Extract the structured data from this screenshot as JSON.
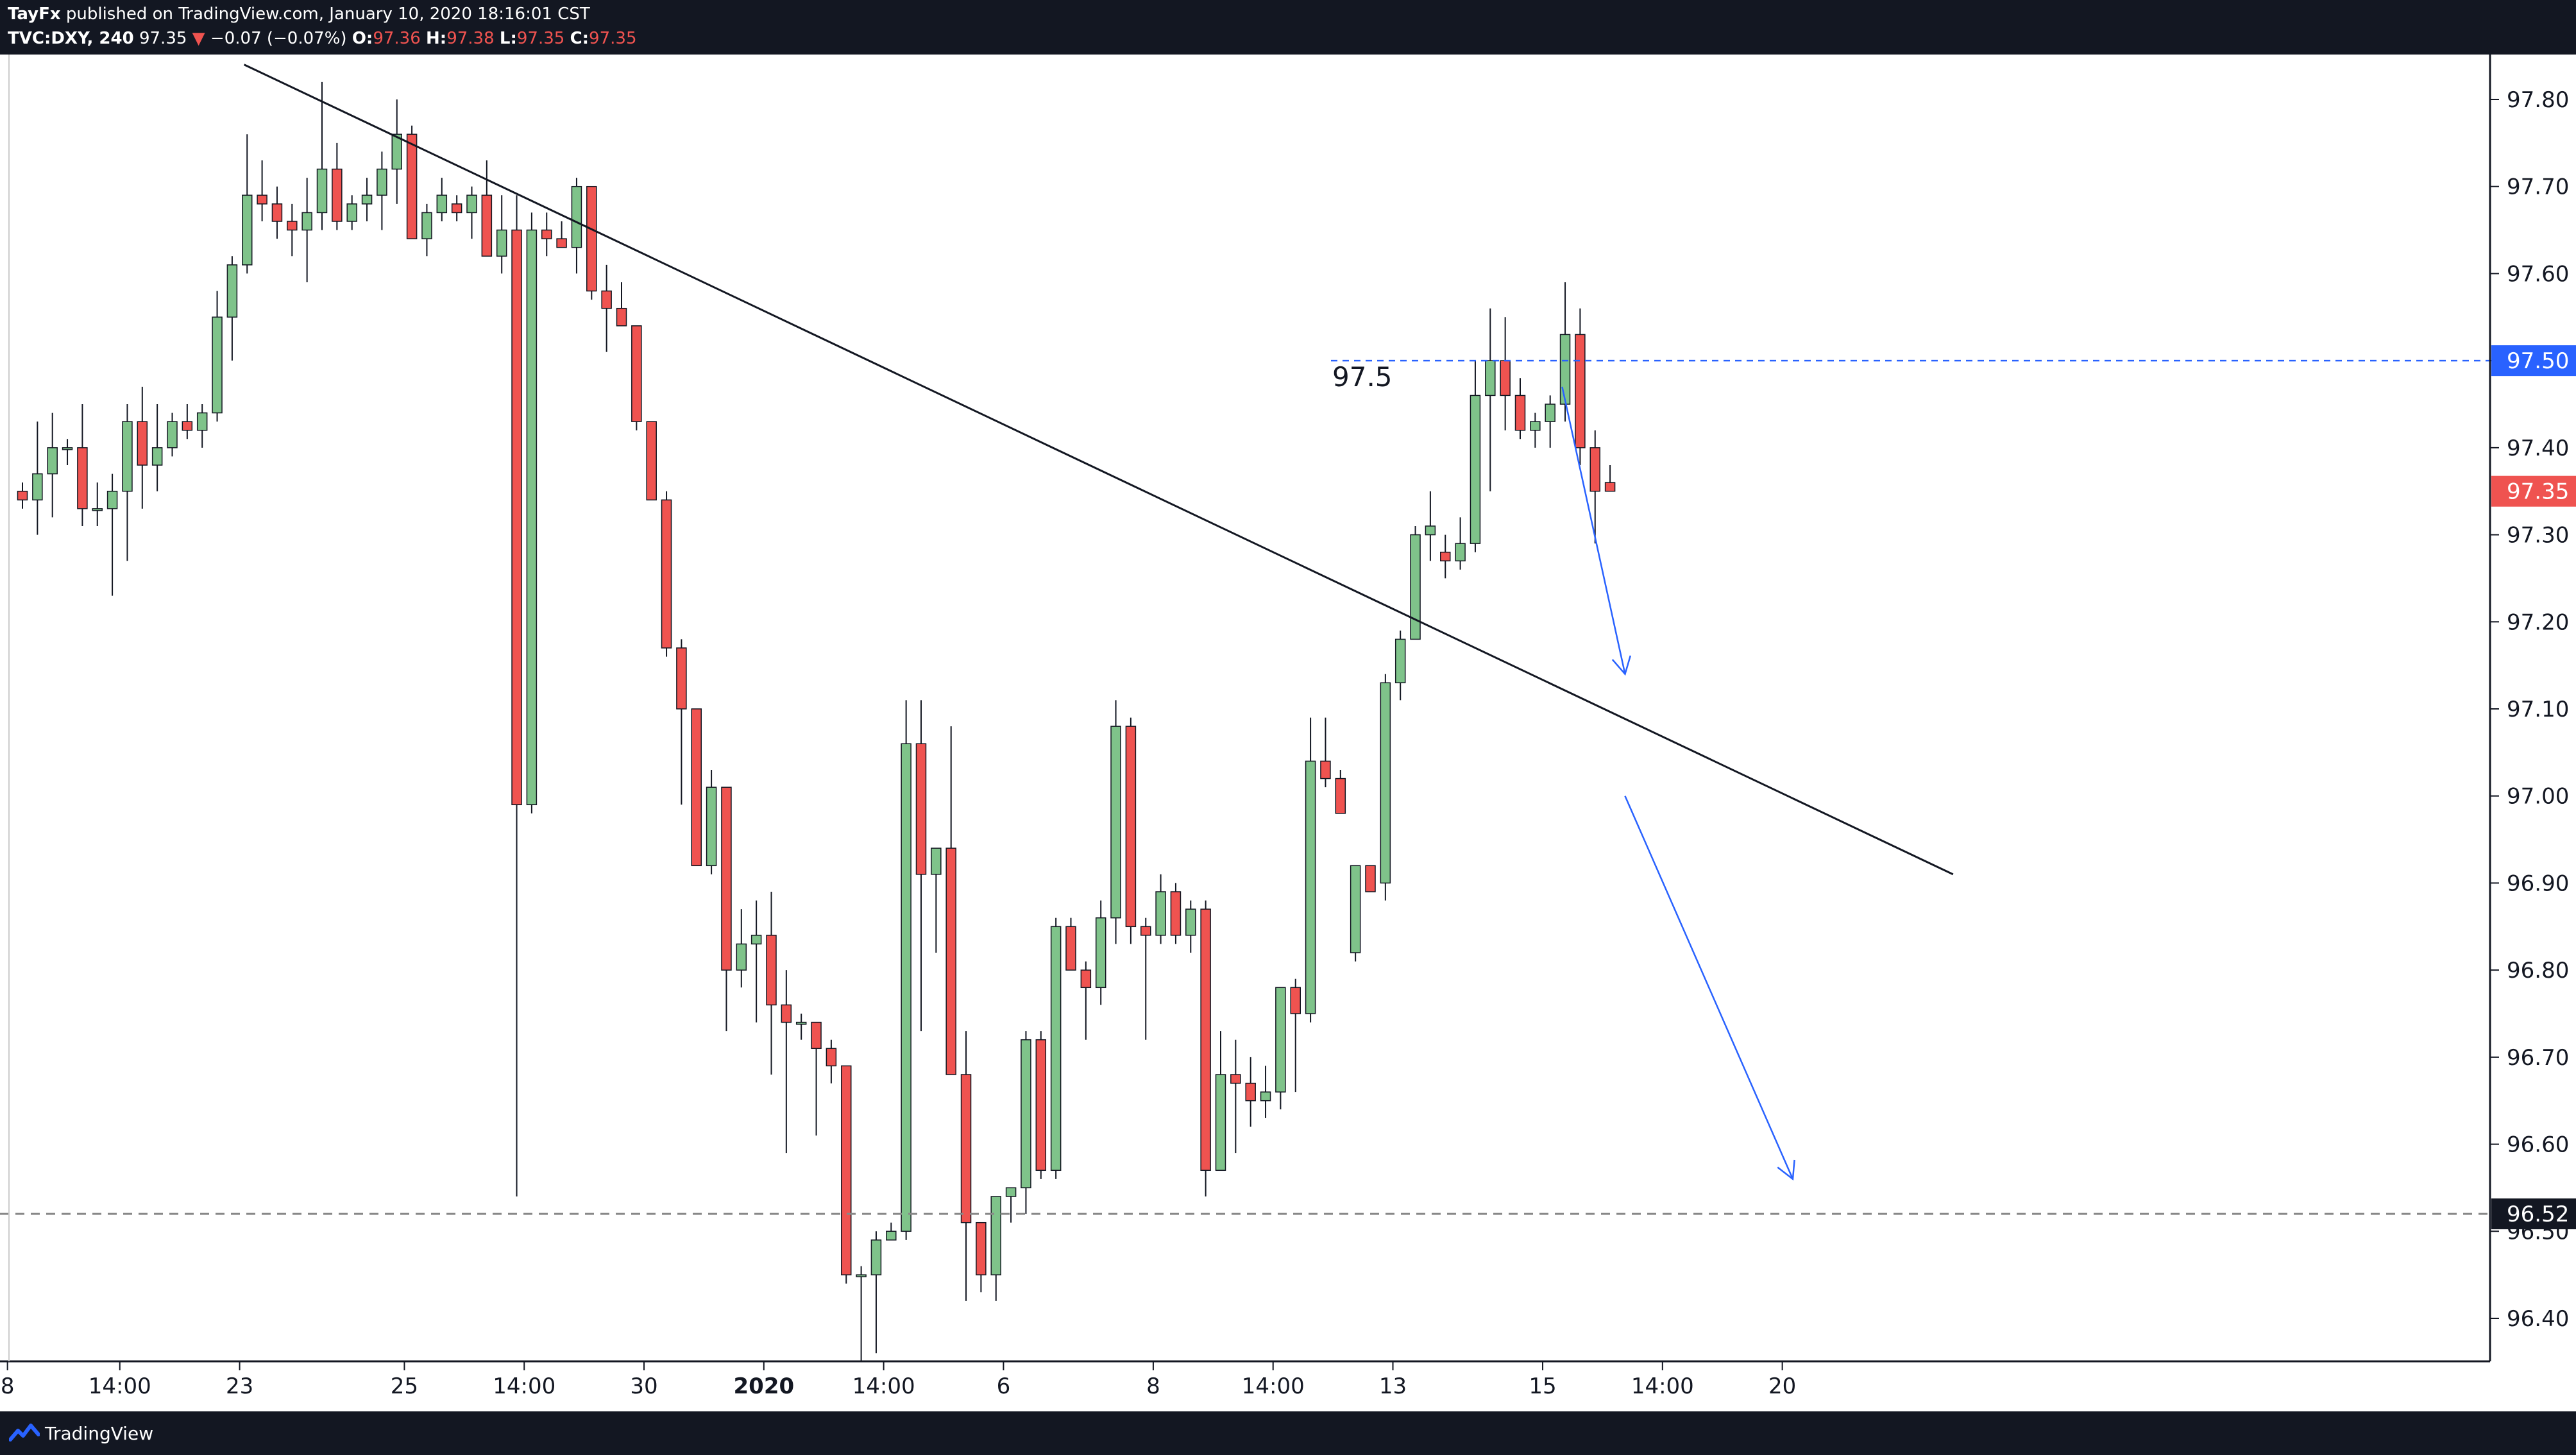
{
  "header": {
    "author": "TayFx",
    "published_text": "published on TradingView.com, January 10, 2020 18:16:01 CST",
    "symbol": "TVC:DXY, 240",
    "last": "97.35",
    "change_arrow": "▼",
    "change": "−0.07 (−0.07%)",
    "o_label": "O:",
    "o_value": "97.36",
    "h_label": "H:",
    "h_value": "97.38",
    "l_label": "L:",
    "l_value": "97.35",
    "c_label": "C:",
    "c_value": "97.35"
  },
  "footer": {
    "brand": "TradingView",
    "logo_icon": "tradingview-logo-icon"
  },
  "colors": {
    "up": "#7fc38a",
    "down": "#ef5350",
    "accent": "#2962ff",
    "frame": "#131722"
  },
  "chart_data": {
    "type": "candlestick",
    "y_ticks": [
      "97.80",
      "97.70",
      "97.60",
      "97.50",
      "97.40",
      "97.30",
      "97.20",
      "97.10",
      "97.00",
      "96.90",
      "96.80",
      "96.70",
      "96.60",
      "96.50",
      "96.40"
    ],
    "x_ticks": [
      {
        "label": "8",
        "at": -1
      },
      {
        "label": "14:00",
        "at": 6.5
      },
      {
        "label": "23",
        "at": 14.5
      },
      {
        "label": "25",
        "at": 25.5
      },
      {
        "label": "14:00",
        "at": 33.5
      },
      {
        "label": "30",
        "at": 41.5
      },
      {
        "label": "2020",
        "at": 49.5
      },
      {
        "label": "14:00",
        "at": 57.5
      },
      {
        "label": "6",
        "at": 65.5
      },
      {
        "label": "8",
        "at": 75.5
      },
      {
        "label": "14:00",
        "at": 83.5
      },
      {
        "label": "13",
        "at": 91.5
      },
      {
        "label": "15",
        "at": 101.5
      },
      {
        "label": "14:00",
        "at": 109.5
      },
      {
        "label": "20",
        "at": 117.5
      }
    ],
    "ylim": [
      96.35,
      97.83
    ],
    "candles": [
      [
        97.35,
        97.36,
        97.33,
        97.34
      ],
      [
        97.34,
        97.43,
        97.3,
        97.37
      ],
      [
        97.37,
        97.44,
        97.32,
        97.4
      ],
      [
        97.4,
        97.41,
        97.38,
        97.4
      ],
      [
        97.4,
        97.45,
        97.31,
        97.33
      ],
      [
        97.33,
        97.36,
        97.31,
        97.33
      ],
      [
        97.33,
        97.37,
        97.23,
        97.35
      ],
      [
        97.35,
        97.45,
        97.27,
        97.43
      ],
      [
        97.43,
        97.47,
        97.33,
        97.38
      ],
      [
        97.38,
        97.45,
        97.35,
        97.4
      ],
      [
        97.4,
        97.44,
        97.39,
        97.43
      ],
      [
        97.43,
        97.45,
        97.41,
        97.42
      ],
      [
        97.42,
        97.45,
        97.4,
        97.44
      ],
      [
        97.44,
        97.58,
        97.43,
        97.55
      ],
      [
        97.55,
        97.62,
        97.5,
        97.61
      ],
      [
        97.61,
        97.76,
        97.6,
        97.69
      ],
      [
        97.69,
        97.73,
        97.66,
        97.68
      ],
      [
        97.68,
        97.7,
        97.64,
        97.66
      ],
      [
        97.66,
        97.68,
        97.62,
        97.65
      ],
      [
        97.65,
        97.71,
        97.59,
        97.67
      ],
      [
        97.67,
        97.82,
        97.65,
        97.72
      ],
      [
        97.72,
        97.75,
        97.65,
        97.66
      ],
      [
        97.66,
        97.69,
        97.65,
        97.68
      ],
      [
        97.68,
        97.71,
        97.66,
        97.69
      ],
      [
        97.69,
        97.74,
        97.65,
        97.72
      ],
      [
        97.72,
        97.8,
        97.68,
        97.76
      ],
      [
        97.76,
        97.77,
        97.64,
        97.64
      ],
      [
        97.64,
        97.68,
        97.62,
        97.67
      ],
      [
        97.67,
        97.71,
        97.66,
        97.69
      ],
      [
        97.68,
        97.69,
        97.66,
        97.67
      ],
      [
        97.67,
        97.7,
        97.64,
        97.69
      ],
      [
        97.69,
        97.73,
        97.62,
        97.62
      ],
      [
        97.62,
        97.69,
        97.6,
        97.65
      ],
      [
        97.65,
        97.69,
        96.54,
        96.99
      ],
      [
        96.99,
        97.67,
        96.98,
        97.65
      ],
      [
        97.65,
        97.67,
        97.62,
        97.64
      ],
      [
        97.64,
        97.66,
        97.63,
        97.63
      ],
      [
        97.63,
        97.71,
        97.6,
        97.7
      ],
      [
        97.7,
        97.7,
        97.57,
        97.58
      ],
      [
        97.58,
        97.61,
        97.51,
        97.56
      ],
      [
        97.56,
        97.59,
        97.54,
        97.54
      ],
      [
        97.54,
        97.54,
        97.42,
        97.43
      ],
      [
        97.43,
        97.43,
        97.34,
        97.34
      ],
      [
        97.34,
        97.35,
        97.16,
        97.17
      ],
      [
        97.17,
        97.18,
        96.99,
        97.1
      ],
      [
        97.1,
        97.1,
        96.92,
        96.92
      ],
      [
        96.92,
        97.03,
        96.91,
        97.01
      ],
      [
        97.01,
        97.01,
        96.73,
        96.8
      ],
      [
        96.8,
        96.87,
        96.78,
        96.83
      ],
      [
        96.83,
        96.88,
        96.74,
        96.84
      ],
      [
        96.84,
        96.89,
        96.68,
        96.76
      ],
      [
        96.76,
        96.8,
        96.59,
        96.74
      ],
      [
        96.74,
        96.75,
        96.72,
        96.74
      ],
      [
        96.74,
        96.74,
        96.61,
        96.71
      ],
      [
        96.71,
        96.72,
        96.67,
        96.69
      ],
      [
        96.69,
        96.69,
        96.44,
        96.45
      ],
      [
        96.45,
        96.46,
        96.35,
        96.45
      ],
      [
        96.45,
        96.5,
        96.36,
        96.49
      ],
      [
        96.49,
        96.51,
        96.49,
        96.5
      ],
      [
        96.5,
        97.11,
        96.49,
        97.06
      ],
      [
        97.06,
        97.11,
        96.73,
        96.91
      ],
      [
        96.91,
        96.94,
        96.82,
        96.94
      ],
      [
        96.94,
        97.08,
        96.68,
        96.68
      ],
      [
        96.68,
        96.73,
        96.42,
        96.51
      ],
      [
        96.51,
        96.51,
        96.43,
        96.45
      ],
      [
        96.45,
        96.54,
        96.42,
        96.54
      ],
      [
        96.54,
        96.55,
        96.51,
        96.55
      ],
      [
        96.55,
        96.73,
        96.52,
        96.72
      ],
      [
        96.72,
        96.73,
        96.56,
        96.57
      ],
      [
        96.57,
        96.86,
        96.56,
        96.85
      ],
      [
        96.85,
        96.86,
        96.8,
        96.8
      ],
      [
        96.8,
        96.81,
        96.72,
        96.78
      ],
      [
        96.78,
        96.88,
        96.76,
        96.86
      ],
      [
        96.86,
        97.11,
        96.83,
        97.08
      ],
      [
        97.08,
        97.09,
        96.83,
        96.85
      ],
      [
        96.85,
        96.86,
        96.72,
        96.84
      ],
      [
        96.84,
        96.91,
        96.83,
        96.89
      ],
      [
        96.89,
        96.9,
        96.83,
        96.84
      ],
      [
        96.84,
        96.88,
        96.82,
        96.87
      ],
      [
        96.87,
        96.88,
        96.54,
        96.57
      ],
      [
        96.57,
        96.73,
        96.57,
        96.68
      ],
      [
        96.68,
        96.72,
        96.59,
        96.67
      ],
      [
        96.67,
        96.7,
        96.62,
        96.65
      ],
      [
        96.65,
        96.69,
        96.63,
        96.66
      ],
      [
        96.66,
        96.78,
        96.64,
        96.78
      ],
      [
        96.78,
        96.79,
        96.66,
        96.75
      ],
      [
        96.75,
        97.09,
        96.74,
        97.04
      ],
      [
        97.04,
        97.09,
        97.01,
        97.02
      ],
      [
        97.02,
        97.03,
        96.98,
        96.98
      ],
      [
        96.82,
        96.92,
        96.81,
        96.92
      ],
      [
        96.92,
        96.92,
        96.89,
        96.89
      ],
      [
        96.9,
        97.14,
        96.88,
        97.13
      ],
      [
        97.13,
        97.19,
        97.11,
        97.18
      ],
      [
        97.18,
        97.31,
        97.18,
        97.3
      ],
      [
        97.3,
        97.35,
        97.27,
        97.31
      ],
      [
        97.28,
        97.3,
        97.25,
        97.27
      ],
      [
        97.27,
        97.32,
        97.26,
        97.29
      ],
      [
        97.29,
        97.5,
        97.28,
        97.46
      ],
      [
        97.46,
        97.56,
        97.35,
        97.5
      ],
      [
        97.5,
        97.55,
        97.42,
        97.46
      ],
      [
        97.46,
        97.48,
        97.41,
        97.42
      ],
      [
        97.42,
        97.44,
        97.4,
        97.43
      ],
      [
        97.43,
        97.46,
        97.4,
        97.45
      ],
      [
        97.45,
        97.59,
        97.43,
        97.53
      ],
      [
        97.53,
        97.56,
        97.38,
        97.4
      ],
      [
        97.4,
        97.42,
        97.29,
        97.35
      ],
      [
        97.36,
        97.38,
        97.35,
        97.35
      ]
    ],
    "resistance_level": 97.5,
    "resistance_label": "97.5",
    "resistance_badge": "97.50",
    "support_level": 96.52,
    "support_badge": "96.52",
    "last_price_badge": "97.35",
    "trendline": [
      [
        14.8,
        97.84
      ],
      [
        128.9,
        96.91
      ]
    ],
    "arrows": [
      [
        [
          102.8,
          97.47
        ],
        [
          107.0,
          97.14
        ]
      ],
      [
        [
          107.0,
          97.0
        ],
        [
          118.2,
          96.56
        ]
      ]
    ]
  }
}
